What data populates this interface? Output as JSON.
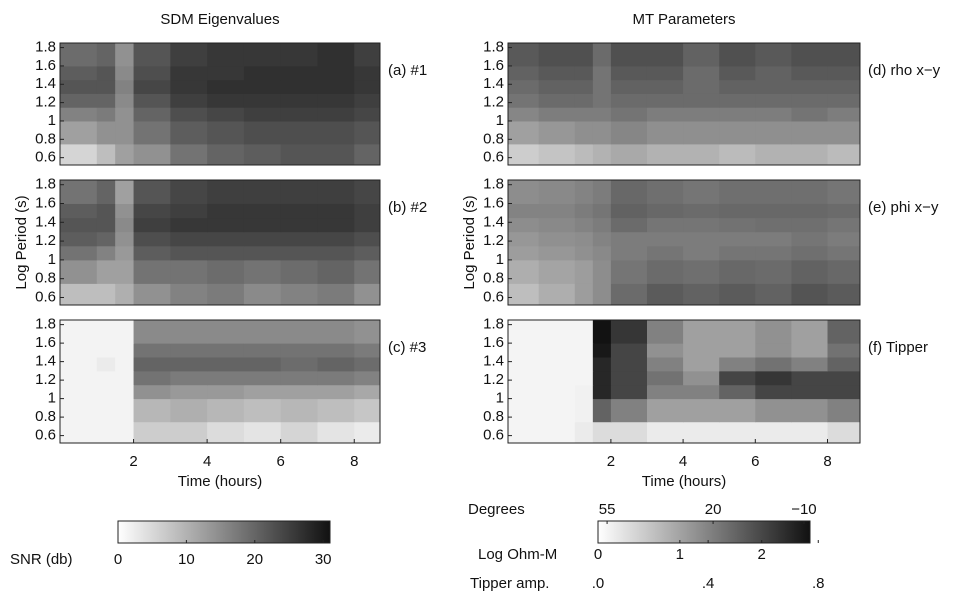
{
  "chart_data": [
    {
      "type": "heatmap",
      "title": "SDM Eigenvalues",
      "label": "(a) #1",
      "xlim": [
        0,
        8.7
      ],
      "ylim": [
        0.52,
        1.85
      ],
      "yticks": [
        0.6,
        0.8,
        1,
        1.2,
        1.4,
        1.6,
        1.8
      ],
      "clim": [
        0,
        31
      ],
      "x_edges": [
        0,
        1,
        1.5,
        2,
        3,
        4,
        5,
        6,
        7,
        8,
        8.7
      ],
      "y_edges": [
        0.52,
        0.75,
        1.0,
        1.15,
        1.3,
        1.45,
        1.6,
        1.85
      ],
      "z": [
        [
          5,
          8,
          12,
          14,
          18,
          20,
          21,
          22,
          22,
          20
        ],
        [
          12,
          14,
          14,
          18,
          21,
          22,
          23,
          23,
          23,
          22
        ],
        [
          16,
          17,
          14,
          20,
          23,
          24,
          25,
          25,
          25,
          24
        ],
        [
          20,
          20,
          15,
          22,
          25,
          26,
          26,
          26,
          26,
          25
        ],
        [
          22,
          22,
          16,
          24,
          26,
          27,
          27,
          27,
          27,
          26
        ],
        [
          21,
          22,
          15,
          23,
          26,
          26,
          27,
          27,
          27,
          26
        ],
        [
          19,
          20,
          14,
          22,
          25,
          26,
          26,
          26,
          27,
          25
        ]
      ]
    },
    {
      "type": "heatmap",
      "ylabel": "Log Period (s)",
      "label": "(b) #2",
      "xlim": [
        0,
        8.7
      ],
      "ylim": [
        0.52,
        1.85
      ],
      "yticks": [
        0.6,
        0.8,
        1,
        1.2,
        1.4,
        1.6,
        1.8
      ],
      "clim": [
        0,
        31
      ],
      "x_edges": [
        0,
        1,
        1.5,
        2,
        3,
        4,
        5,
        6,
        7,
        8,
        8.7
      ],
      "y_edges": [
        0.52,
        0.75,
        1.0,
        1.15,
        1.3,
        1.45,
        1.6,
        1.85
      ],
      "z": [
        [
          8,
          8,
          10,
          14,
          16,
          17,
          15,
          16,
          17,
          14
        ],
        [
          14,
          12,
          12,
          18,
          18,
          19,
          18,
          19,
          20,
          18
        ],
        [
          18,
          16,
          13,
          21,
          22,
          22,
          22,
          22,
          22,
          21
        ],
        [
          21,
          20,
          14,
          23,
          24,
          24,
          24,
          24,
          24,
          23
        ],
        [
          22,
          22,
          15,
          25,
          26,
          26,
          26,
          26,
          26,
          25
        ],
        [
          21,
          22,
          14,
          24,
          25,
          26,
          26,
          26,
          26,
          25
        ],
        [
          18,
          20,
          12,
          22,
          24,
          25,
          25,
          25,
          25,
          24
        ]
      ]
    },
    {
      "type": "heatmap",
      "xlabel": "Time (hours)",
      "label": "(c) #3",
      "xlim": [
        0,
        8.7
      ],
      "xticks": [
        2,
        4,
        6,
        8
      ],
      "ylim": [
        0.52,
        1.85
      ],
      "yticks": [
        0.6,
        0.8,
        1,
        1.2,
        1.4,
        1.6,
        1.8
      ],
      "clim": [
        0,
        31
      ],
      "x_edges": [
        0,
        1,
        1.5,
        2,
        3,
        4,
        5,
        6,
        7,
        8,
        8.7
      ],
      "y_edges": [
        0.52,
        0.75,
        1.0,
        1.15,
        1.3,
        1.45,
        1.6,
        1.85
      ],
      "z": [
        [
          1,
          1,
          1,
          6,
          6,
          4,
          3,
          5,
          3,
          2
        ],
        [
          1,
          1,
          1,
          9,
          10,
          9,
          8,
          9,
          8,
          7
        ],
        [
          1,
          1,
          1,
          14,
          13,
          13,
          12,
          12,
          12,
          11
        ],
        [
          1,
          1,
          1,
          18,
          17,
          17,
          17,
          17,
          17,
          16
        ],
        [
          1,
          2,
          1,
          20,
          20,
          20,
          20,
          19,
          20,
          19
        ],
        [
          1,
          1,
          1,
          18,
          18,
          18,
          18,
          18,
          18,
          17
        ],
        [
          1,
          1,
          1,
          15,
          15,
          15,
          15,
          15,
          15,
          14
        ]
      ]
    },
    {
      "type": "heatmap",
      "title": "MT Parameters",
      "label": "(d) rho x−y",
      "xlim": [
        -0.85,
        8.9
      ],
      "ylim": [
        0.52,
        1.85
      ],
      "yticks": [
        0.6,
        0.8,
        1,
        1.2,
        1.4,
        1.6,
        1.8
      ],
      "clim": [
        0,
        2.59
      ],
      "x_edges": [
        -0.85,
        0,
        1,
        1.5,
        2,
        3,
        4,
        5,
        6,
        7,
        8,
        8.9
      ],
      "y_edges": [
        0.52,
        0.75,
        1.0,
        1.15,
        1.3,
        1.45,
        1.6,
        1.85
      ],
      "z": [
        [
          0.5,
          0.6,
          0.7,
          0.8,
          0.9,
          0.8,
          0.8,
          0.7,
          0.8,
          0.8,
          0.7
        ],
        [
          1.0,
          1.1,
          1.2,
          1.2,
          1.3,
          1.2,
          1.2,
          1.2,
          1.2,
          1.2,
          1.2
        ],
        [
          1.3,
          1.4,
          1.4,
          1.4,
          1.5,
          1.4,
          1.4,
          1.4,
          1.4,
          1.5,
          1.4
        ],
        [
          1.5,
          1.6,
          1.6,
          1.5,
          1.6,
          1.6,
          1.6,
          1.6,
          1.6,
          1.6,
          1.6
        ],
        [
          1.6,
          1.7,
          1.7,
          1.5,
          1.7,
          1.7,
          1.6,
          1.7,
          1.7,
          1.7,
          1.7
        ],
        [
          1.7,
          1.8,
          1.8,
          1.5,
          1.8,
          1.8,
          1.6,
          1.8,
          1.7,
          1.8,
          1.8
        ],
        [
          1.8,
          1.9,
          1.9,
          1.6,
          1.9,
          1.9,
          1.7,
          1.9,
          1.8,
          1.9,
          1.9
        ]
      ]
    },
    {
      "type": "heatmap",
      "ylabel": "Log Period (s)",
      "label": "(e) phi x−y",
      "xlim": [
        -0.85,
        8.9
      ],
      "ylim": [
        0.52,
        1.85
      ],
      "yticks": [
        0.6,
        0.8,
        1,
        1.2,
        1.4,
        1.6,
        1.8
      ],
      "clim": [
        58,
        -12
      ],
      "x_edges": [
        -0.85,
        0,
        1,
        1.5,
        2,
        3,
        4,
        5,
        6,
        7,
        8,
        8.9
      ],
      "y_edges": [
        0.52,
        0.75,
        1.0,
        1.15,
        1.3,
        1.45,
        1.6,
        1.85
      ],
      "z": [
        [
          40,
          35,
          30,
          25,
          15,
          10,
          12,
          10,
          12,
          8,
          10
        ],
        [
          35,
          32,
          30,
          25,
          18,
          15,
          16,
          14,
          15,
          12,
          14
        ],
        [
          30,
          28,
          26,
          24,
          20,
          18,
          20,
          18,
          18,
          16,
          18
        ],
        [
          28,
          26,
          25,
          22,
          20,
          20,
          20,
          20,
          20,
          18,
          20
        ],
        [
          25,
          24,
          22,
          20,
          15,
          18,
          18,
          17,
          16,
          16,
          18
        ],
        [
          22,
          22,
          20,
          18,
          12,
          14,
          15,
          14,
          14,
          14,
          15
        ],
        [
          25,
          24,
          22,
          20,
          14,
          16,
          18,
          16,
          16,
          16,
          18
        ]
      ]
    },
    {
      "type": "heatmap",
      "xlabel": "Time (hours)",
      "label": "(f) Tipper",
      "xlim": [
        -0.85,
        8.9
      ],
      "xticks": [
        2,
        4,
        6,
        8
      ],
      "ylim": [
        0.52,
        1.85
      ],
      "yticks": [
        0.6,
        0.8,
        1,
        1.2,
        1.4,
        1.6,
        1.8
      ],
      "clim": [
        0,
        0.77
      ],
      "x_edges": [
        -0.85,
        0,
        1,
        1.5,
        2,
        3,
        4,
        5,
        6,
        7,
        8,
        8.9
      ],
      "y_edges": [
        0.52,
        0.75,
        1.0,
        1.15,
        1.3,
        1.45,
        1.6,
        1.85
      ],
      "z": [
        [
          0.02,
          0.02,
          0.05,
          0.1,
          0.1,
          0.05,
          0.05,
          0.05,
          0.05,
          0.05,
          0.1
        ],
        [
          0.02,
          0.02,
          0.03,
          0.5,
          0.4,
          0.3,
          0.3,
          0.3,
          0.35,
          0.35,
          0.4
        ],
        [
          0.02,
          0.02,
          0.03,
          0.7,
          0.6,
          0.4,
          0.4,
          0.5,
          0.6,
          0.6,
          0.6
        ],
        [
          0.02,
          0.02,
          0.02,
          0.7,
          0.6,
          0.45,
          0.35,
          0.6,
          0.65,
          0.6,
          0.6
        ],
        [
          0.02,
          0.02,
          0.02,
          0.7,
          0.6,
          0.4,
          0.3,
          0.4,
          0.45,
          0.4,
          0.5
        ],
        [
          0.02,
          0.02,
          0.02,
          0.75,
          0.6,
          0.35,
          0.3,
          0.3,
          0.35,
          0.3,
          0.45
        ],
        [
          0.02,
          0.02,
          0.02,
          0.8,
          0.65,
          0.4,
          0.3,
          0.3,
          0.35,
          0.3,
          0.5
        ]
      ]
    },
    {
      "type": "colorbar",
      "scales": [
        {
          "label": "SNR (db)",
          "lim": [
            0,
            31
          ],
          "ticks": [
            0,
            10,
            20,
            30
          ]
        }
      ]
    },
    {
      "type": "colorbar",
      "scales": [
        {
          "label": "Degrees",
          "lim": [
            58,
            -12
          ],
          "ticks": [
            55,
            20,
            {
              "value": -10,
              "label": "−10"
            }
          ]
        },
        {
          "label": "Log Ohm-M",
          "lim": [
            0,
            2.59
          ],
          "ticks": [
            0,
            1,
            2
          ]
        },
        {
          "label": "Tipper amp.",
          "lim": [
            0,
            0.77
          ],
          "ticks": [
            {
              "value": 0,
              "label": ".0"
            },
            {
              "value": 0.4,
              "label": ".4"
            },
            {
              "value": 0.8,
              "label": ".8"
            }
          ]
        }
      ]
    }
  ]
}
